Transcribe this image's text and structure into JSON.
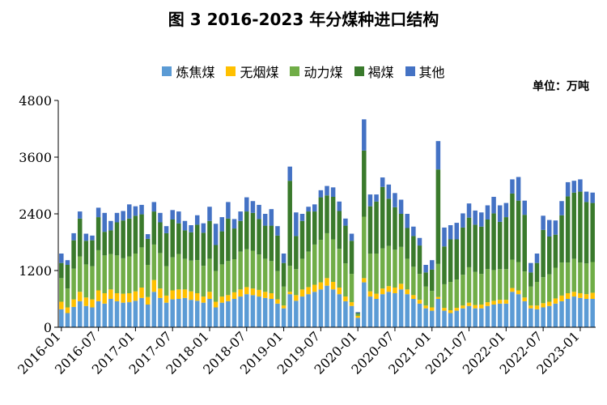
{
  "chart_data": {
    "type": "bar",
    "stacked": true,
    "title": "图 3 2016-2023 年分煤种进口结构",
    "unit": "单位：万吨",
    "ylim": [
      0,
      4800
    ],
    "yticks": [
      "0",
      "1200",
      "2400",
      "3600",
      "4800"
    ],
    "ytick_values": [
      0,
      1200,
      2400,
      3600,
      4800
    ],
    "xtick_labels": [
      "2016-01",
      "2016-07",
      "2017-01",
      "2017-07",
      "2018-01",
      "2018-07",
      "2019-01",
      "2019-07",
      "2020-01",
      "2020-07",
      "2021-01",
      "2021-07",
      "2022-01",
      "2022-07",
      "2023-01"
    ],
    "xtick_index": [
      0,
      6,
      12,
      18,
      24,
      30,
      36,
      42,
      48,
      54,
      60,
      66,
      72,
      78,
      84
    ],
    "categories": [
      "2016-01",
      "2016-02",
      "2016-03",
      "2016-04",
      "2016-05",
      "2016-06",
      "2016-07",
      "2016-08",
      "2016-09",
      "2016-10",
      "2016-11",
      "2016-12",
      "2017-01",
      "2017-02",
      "2017-03",
      "2017-04",
      "2017-05",
      "2017-06",
      "2017-07",
      "2017-08",
      "2017-09",
      "2017-10",
      "2017-11",
      "2017-12",
      "2018-01",
      "2018-02",
      "2018-03",
      "2018-04",
      "2018-05",
      "2018-06",
      "2018-07",
      "2018-08",
      "2018-09",
      "2018-10",
      "2018-11",
      "2018-12",
      "2019-01",
      "2019-02",
      "2019-03",
      "2019-04",
      "2019-05",
      "2019-06",
      "2019-07",
      "2019-08",
      "2019-09",
      "2019-10",
      "2019-11",
      "2019-12",
      "2020-01",
      "2020-02",
      "2020-03",
      "2020-04",
      "2020-05",
      "2020-06",
      "2020-07",
      "2020-08",
      "2020-09",
      "2020-10",
      "2020-11",
      "2020-12",
      "2021-01",
      "2021-02",
      "2021-03",
      "2021-04",
      "2021-05",
      "2021-06",
      "2021-07",
      "2021-08",
      "2021-09",
      "2021-10",
      "2021-11",
      "2021-12",
      "2022-01",
      "2022-02",
      "2022-03",
      "2022-04",
      "2022-05",
      "2022-06",
      "2022-07",
      "2022-08",
      "2022-09",
      "2022-10",
      "2022-11",
      "2022-12",
      "2023-01",
      "2023-02",
      "2023-03"
    ],
    "series": [
      {
        "name": "炼焦煤",
        "color": "#5B9BD5",
        "values": [
          380,
          300,
          430,
          550,
          450,
          420,
          550,
          500,
          600,
          550,
          520,
          530,
          560,
          620,
          480,
          750,
          620,
          520,
          590,
          600,
          620,
          580,
          560,
          520,
          600,
          420,
          520,
          550,
          600,
          650,
          700,
          680,
          650,
          620,
          600,
          500,
          400,
          700,
          560,
          650,
          700,
          750,
          800,
          880,
          800,
          700,
          550,
          450,
          200,
          950,
          650,
          600,
          700,
          750,
          720,
          800,
          700,
          600,
          500,
          400,
          350,
          600,
          350,
          300,
          350,
          400,
          450,
          400,
          400,
          450,
          480,
          500,
          500,
          750,
          700,
          550,
          400,
          380,
          420,
          450,
          500,
          550,
          600,
          650,
          620,
          600,
          600
        ]
      },
      {
        "name": "无烟煤",
        "color": "#FFC000",
        "values": [
          160,
          120,
          160,
          200,
          180,
          170,
          230,
          220,
          200,
          170,
          190,
          190,
          200,
          220,
          160,
          250,
          200,
          150,
          190,
          200,
          180,
          180,
          160,
          130,
          150,
          120,
          130,
          130,
          140,
          150,
          150,
          140,
          140,
          130,
          120,
          90,
          60,
          50,
          120,
          150,
          150,
          150,
          150,
          160,
          160,
          140,
          100,
          80,
          40,
          90,
          110,
          110,
          120,
          120,
          120,
          120,
          100,
          80,
          80,
          60,
          70,
          40,
          60,
          60,
          60,
          60,
          70,
          70,
          80,
          80,
          80,
          80,
          80,
          80,
          80,
          80,
          60,
          80,
          90,
          90,
          110,
          120,
          120,
          100,
          100,
          100,
          130
        ]
      },
      {
        "name": "动力煤",
        "color": "#70AD47",
        "values": [
          500,
          400,
          650,
          750,
          700,
          700,
          850,
          800,
          750,
          800,
          750,
          780,
          800,
          850,
          680,
          750,
          750,
          620,
          700,
          750,
          650,
          650,
          700,
          650,
          700,
          650,
          680,
          720,
          700,
          800,
          800,
          800,
          750,
          700,
          680,
          600,
          400,
          550,
          550,
          650,
          750,
          850,
          900,
          950,
          900,
          820,
          700,
          600,
          40,
          1300,
          800,
          850,
          850,
          850,
          800,
          780,
          650,
          600,
          550,
          400,
          350,
          700,
          500,
          600,
          600,
          650,
          750,
          700,
          650,
          700,
          650,
          650,
          650,
          600,
          600,
          550,
          400,
          500,
          550,
          580,
          650,
          700,
          650,
          700,
          650,
          650,
          650
        ]
      },
      {
        "name": "褐煤",
        "color": "#3A7A2C",
        "values": [
          320,
          500,
          600,
          800,
          500,
          550,
          700,
          500,
          500,
          700,
          800,
          800,
          800,
          700,
          550,
          700,
          650,
          700,
          800,
          650,
          600,
          600,
          750,
          700,
          800,
          550,
          700,
          900,
          650,
          650,
          800,
          800,
          750,
          700,
          750,
          750,
          500,
          1800,
          700,
          800,
          850,
          700,
          900,
          800,
          900,
          800,
          800,
          700,
          20,
          1400,
          1000,
          1100,
          1300,
          1000,
          900,
          700,
          650,
          650,
          600,
          300,
          450,
          2000,
          800,
          900,
          850,
          1000,
          1050,
          1000,
          1000,
          1050,
          1200,
          1000,
          1100,
          1400,
          1300,
          1200,
          300,
          400,
          1000,
          800,
          700,
          1000,
          1400,
          1400,
          1500,
          1300,
          1250
        ]
      },
      {
        "name": "其他",
        "color": "#4472C4",
        "values": [
          200,
          100,
          150,
          150,
          150,
          100,
          200,
          400,
          200,
          200,
          200,
          300,
          200,
          200,
          100,
          200,
          200,
          150,
          200,
          250,
          200,
          150,
          200,
          200,
          300,
          450,
          300,
          350,
          200,
          200,
          300,
          250,
          300,
          250,
          350,
          200,
          200,
          300,
          500,
          150,
          100,
          150,
          150,
          200,
          200,
          200,
          150,
          150,
          20,
          660,
          250,
          150,
          200,
          300,
          300,
          300,
          300,
          200,
          160,
          160,
          200,
          600,
          400,
          300,
          350,
          300,
          300,
          300,
          300,
          300,
          350,
          350,
          300,
          300,
          500,
          300,
          200,
          200,
          300,
          350,
          300,
          300,
          300,
          250,
          260,
          220,
          220
        ]
      }
    ]
  }
}
